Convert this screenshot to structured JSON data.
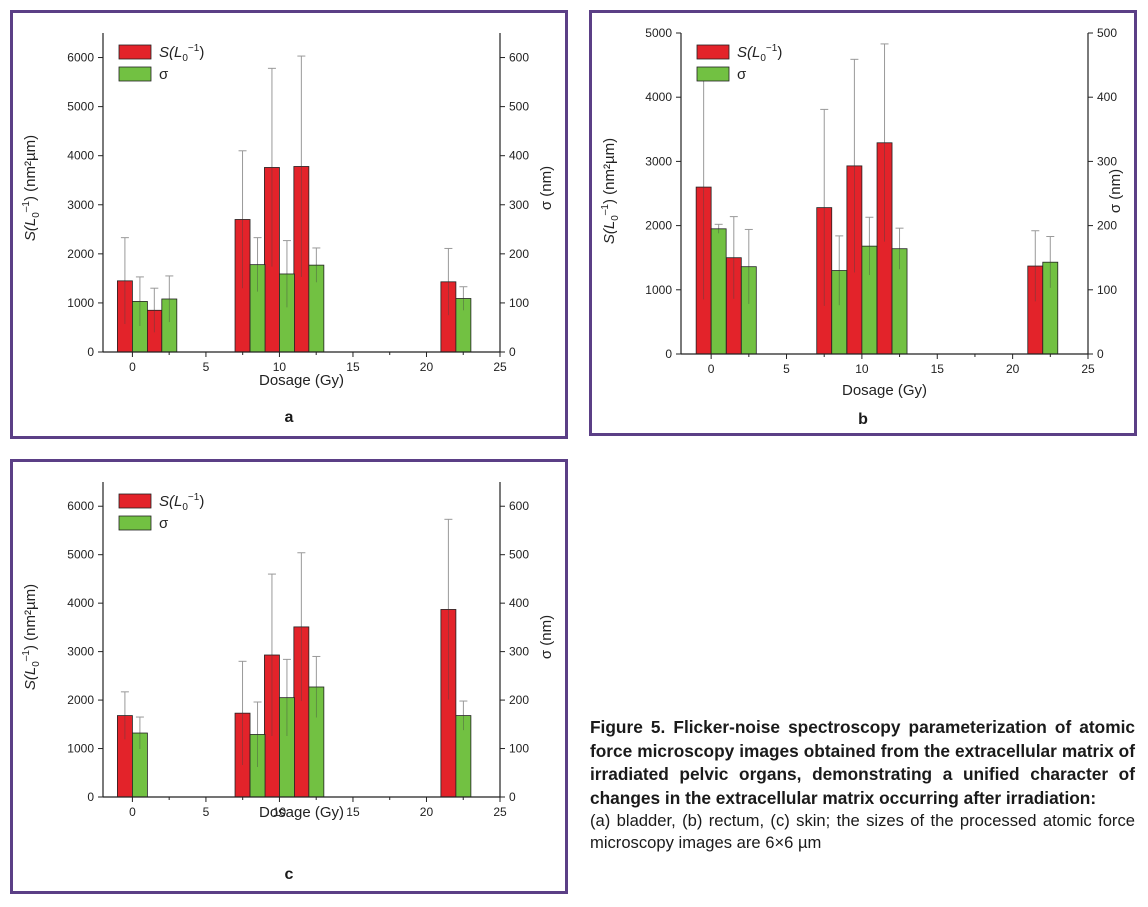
{
  "colors": {
    "s_bar": "#e3232a",
    "sigma_bar": "#72c142",
    "frame": "#5b3f86",
    "error_bar": "#999999"
  },
  "legend": {
    "s_main": "S(L",
    "s_sub": "0",
    "s_sup": "−1",
    "s_close": ")",
    "sigma": "σ"
  },
  "panels": [
    {
      "label": "a",
      "chart_data": {
        "type": "bar",
        "xlabel": "Dosage (Gy)",
        "ylabel_left": {
          "main": "S(L",
          "sub": "0",
          "sup": "–1",
          "rest": ") (nm²µm)"
        },
        "ylabel_right": "σ (nm)",
        "xlim": [
          -2,
          25
        ],
        "xticks": [
          0,
          5,
          10,
          15,
          20,
          25
        ],
        "ylim_left": [
          0,
          6500
        ],
        "yticks_left": [
          0,
          1000,
          2000,
          3000,
          4000,
          5000,
          6000
        ],
        "ylim_right": [
          0,
          650
        ],
        "yticks_right": [
          0,
          100,
          200,
          300,
          400,
          500,
          600
        ],
        "legend_position": "top-left",
        "series": [
          {
            "name": "S(L0−1)",
            "axis": "left",
            "points": [
              {
                "x": 0,
                "y": 1450,
                "err": 880
              },
              {
                "x": 2,
                "y": 850,
                "err": 450
              },
              {
                "x": 8,
                "y": 2700,
                "err": 1400
              },
              {
                "x": 10,
                "y": 3760,
                "err": 2020
              },
              {
                "x": 12,
                "y": 3780,
                "err": 2250
              },
              {
                "x": 22,
                "y": 1430,
                "err": 680
              }
            ]
          },
          {
            "name": "σ",
            "axis": "right",
            "points": [
              {
                "x": 0,
                "y": 103,
                "err": 50
              },
              {
                "x": 2,
                "y": 108,
                "err": 47
              },
              {
                "x": 8,
                "y": 178,
                "err": 55
              },
              {
                "x": 10,
                "y": 159,
                "err": 68
              },
              {
                "x": 12,
                "y": 177,
                "err": 35
              },
              {
                "x": 22,
                "y": 109,
                "err": 24
              }
            ]
          }
        ]
      }
    },
    {
      "label": "b",
      "chart_data": {
        "type": "bar",
        "xlabel": "Dosage (Gy)",
        "ylabel_left": {
          "main": "S(L",
          "sub": "0",
          "sup": "–1",
          "rest": ") (nm²µm)"
        },
        "ylabel_right": "σ (nm)",
        "xlim": [
          -2,
          25
        ],
        "xticks": [
          0,
          5,
          10,
          15,
          20,
          25
        ],
        "ylim_left": [
          0,
          5000
        ],
        "yticks_left": [
          0,
          1000,
          2000,
          3000,
          4000,
          5000
        ],
        "ylim_right": [
          0,
          500
        ],
        "yticks_right": [
          0,
          100,
          200,
          300,
          400,
          500
        ],
        "legend_position": "top-left",
        "series": [
          {
            "name": "S(L0−1)",
            "axis": "left",
            "points": [
              {
                "x": 0,
                "y": 2600,
                "err": 1750
              },
              {
                "x": 2,
                "y": 1500,
                "err": 640
              },
              {
                "x": 8,
                "y": 2280,
                "err": 1530
              },
              {
                "x": 10,
                "y": 2930,
                "err": 1660
              },
              {
                "x": 12,
                "y": 3290,
                "err": 1540
              },
              {
                "x": 22,
                "y": 1370,
                "err": 550
              }
            ]
          },
          {
            "name": "σ",
            "axis": "right",
            "points": [
              {
                "x": 0,
                "y": 195,
                "err": 7
              },
              {
                "x": 2,
                "y": 136,
                "err": 58
              },
              {
                "x": 8,
                "y": 130,
                "err": 54
              },
              {
                "x": 10,
                "y": 168,
                "err": 45
              },
              {
                "x": 12,
                "y": 164,
                "err": 32
              },
              {
                "x": 22,
                "y": 143,
                "err": 40
              }
            ]
          }
        ]
      }
    },
    {
      "label": "c",
      "chart_data": {
        "type": "bar",
        "xlabel": "Dosage (Gy)",
        "ylabel_left": {
          "main": "S(L",
          "sub": "0",
          "sup": "–1",
          "rest": ") (nm²µm)"
        },
        "ylabel_right": "σ (nm)",
        "xlim": [
          -2,
          25
        ],
        "xticks": [
          0,
          5,
          10,
          15,
          20,
          25
        ],
        "ylim_left": [
          0,
          6500
        ],
        "yticks_left": [
          0,
          1000,
          2000,
          3000,
          4000,
          5000,
          6000
        ],
        "ylim_right": [
          0,
          650
        ],
        "yticks_right": [
          0,
          100,
          200,
          300,
          400,
          500,
          600
        ],
        "legend_position": "top-left",
        "series": [
          {
            "name": "S(L0−1)",
            "axis": "left",
            "points": [
              {
                "x": 0,
                "y": 1680,
                "err": 490
              },
              {
                "x": 8,
                "y": 1730,
                "err": 1070
              },
              {
                "x": 10,
                "y": 2930,
                "err": 1670
              },
              {
                "x": 12,
                "y": 3510,
                "err": 1530
              },
              {
                "x": 22,
                "y": 3870,
                "err": 1860
              }
            ]
          },
          {
            "name": "σ",
            "axis": "right",
            "points": [
              {
                "x": 0,
                "y": 132,
                "err": 33
              },
              {
                "x": 8,
                "y": 129,
                "err": 67
              },
              {
                "x": 10,
                "y": 205,
                "err": 79
              },
              {
                "x": 12,
                "y": 227,
                "err": 63
              },
              {
                "x": 22,
                "y": 168,
                "err": 30
              }
            ]
          }
        ]
      }
    }
  ],
  "caption": {
    "title": "Figure 5. Flicker-noise spectroscopy parameterization of atomic force microscopy images obtained from the extracellular matrix of irradiated pelvic organs, demonstrating a unified character of changes in the extracellular matrix occurring after irradiation:",
    "text": "(a) bladder, (b) rectum, (c) skin; the sizes of the processed atomic force microscopy images are 6×6 µm"
  }
}
